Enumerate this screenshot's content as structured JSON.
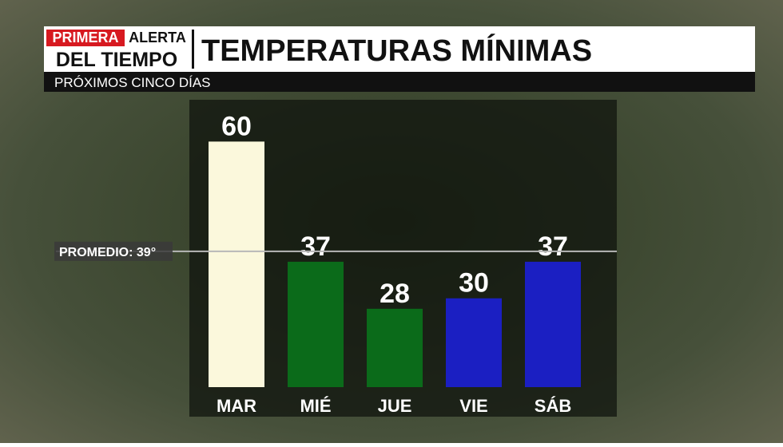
{
  "chart_data": {
    "type": "bar",
    "brand_top_red": "PRIMERA",
    "brand_top": "ALERTA",
    "brand_bottom": "DEL TIEMPO",
    "title": "TEMPERATURAS MÍNIMAS",
    "subtitle": "PRÓXIMOS CINCO DÍAS",
    "categories": [
      "MAR",
      "MIÉ",
      "JUE",
      "VIE",
      "SÁB"
    ],
    "values": [
      60,
      37,
      28,
      30,
      37
    ],
    "colors": [
      "#fbf8dc",
      "#0b6b1a",
      "#0b6b1a",
      "#1b1fc2",
      "#1b1fc2"
    ],
    "ylim": [
      13,
      68
    ],
    "reference_line": {
      "value": 39,
      "label": "PROMEDIO: 39°"
    }
  }
}
